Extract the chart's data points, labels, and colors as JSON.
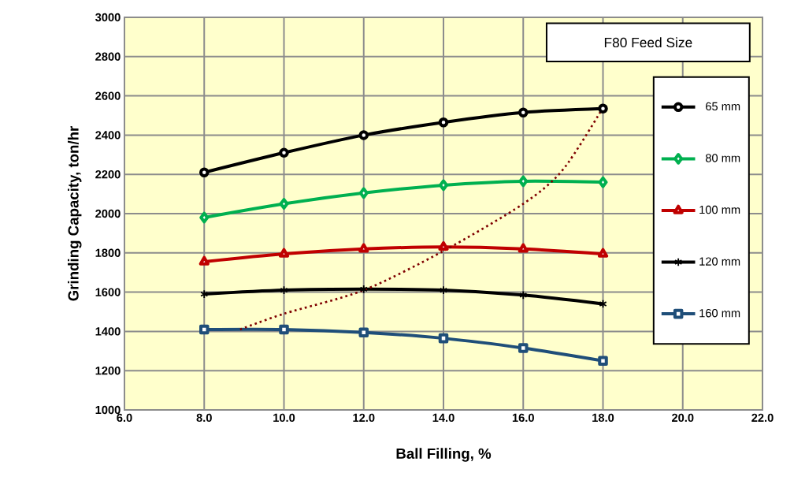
{
  "chart_data": {
    "type": "line",
    "xlabel": "Ball Filling, %",
    "ylabel": "Grinding Capacity, ton/hr",
    "legend_title": "F80 Feed Size",
    "legend": "right",
    "grid": true,
    "x": [
      8,
      10,
      12,
      14,
      16,
      18
    ],
    "xlim": [
      6,
      22
    ],
    "ylim": [
      1000,
      3000
    ],
    "xticks": [
      {
        "value": 6,
        "label": "6.0"
      },
      {
        "value": 8,
        "label": "8.0"
      },
      {
        "value": 10,
        "label": "10.0"
      },
      {
        "value": 12,
        "label": "12.0"
      },
      {
        "value": 14,
        "label": "14.0"
      },
      {
        "value": 16,
        "label": "16.0"
      },
      {
        "value": 18,
        "label": "18.0"
      },
      {
        "value": 20,
        "label": "20.0"
      },
      {
        "value": 22,
        "label": "22.0"
      }
    ],
    "yticks": [
      1000,
      1200,
      1400,
      1600,
      1800,
      2000,
      2200,
      2400,
      2600,
      2800,
      3000
    ],
    "series": [
      {
        "name": "65 mm",
        "color": "#000000",
        "marker": "circle",
        "values": [
          2210,
          2310,
          2400,
          2465,
          2515,
          2535
        ]
      },
      {
        "name": "80 mm",
        "color": "#00b050",
        "marker": "diamond",
        "values": [
          1980,
          2050,
          2105,
          2145,
          2165,
          2160
        ]
      },
      {
        "name": "100 mm",
        "color": "#c00000",
        "marker": "triangle",
        "values": [
          1755,
          1795,
          1820,
          1830,
          1820,
          1795
        ]
      },
      {
        "name": "120 mm",
        "color": "#000000",
        "marker": "cross",
        "values": [
          1590,
          1610,
          1615,
          1610,
          1585,
          1540
        ]
      },
      {
        "name": "160 mm",
        "color": "#1f4e79",
        "marker": "square",
        "values": [
          1410,
          1410,
          1395,
          1365,
          1315,
          1250
        ]
      },
      {
        "color": "#7f0000",
        "marker": "none",
        "line_style": "dotted",
        "x": [
          8.9,
          10,
          12,
          14,
          16,
          17,
          18
        ],
        "values": [
          1410,
          1490,
          1610,
          1810,
          2050,
          2225,
          2540
        ]
      }
    ]
  }
}
